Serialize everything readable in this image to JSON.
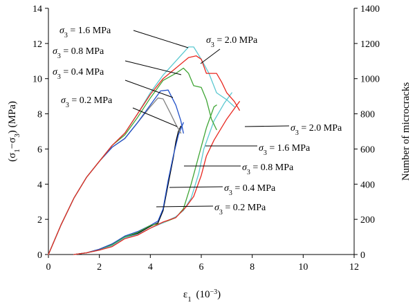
{
  "chart_data": {
    "type": "line",
    "title": "",
    "x_axis": {
      "label": "ε₁ (10⁻³)",
      "range": [
        0,
        12
      ],
      "ticks": [
        0,
        2,
        4,
        6,
        8,
        10,
        12
      ]
    },
    "y_axis_left": {
      "label": "(σ₁−σ₃) (MPa)",
      "range": [
        0,
        14
      ],
      "ticks": [
        0,
        2,
        4,
        6,
        8,
        10,
        12,
        14
      ]
    },
    "y_axis_right": {
      "label": "Number of microcracks",
      "range": [
        0,
        1400
      ],
      "ticks": [
        0,
        200,
        400,
        600,
        800,
        1000,
        1200,
        1400
      ]
    },
    "grid": false,
    "legend": "none (curves labeled by leader-line annotations)",
    "stress_curves": [
      {
        "name": "σ₃ = 0.2 MPa",
        "color": "#808080",
        "axis": "left",
        "points": [
          [
            0,
            0
          ],
          [
            0.5,
            1.7
          ],
          [
            1,
            3.2
          ],
          [
            1.5,
            4.4
          ],
          [
            2,
            5.3
          ],
          [
            2.5,
            6.1
          ],
          [
            3,
            6.6
          ],
          [
            3.5,
            7.5
          ],
          [
            4,
            8.4
          ],
          [
            4.3,
            8.9
          ],
          [
            4.5,
            8.85
          ],
          [
            4.8,
            8.0
          ],
          [
            5,
            7.4
          ],
          [
            5.2,
            6.9
          ]
        ]
      },
      {
        "name": "σ₃ = 0.4 MPa",
        "color": "#1f4fc8",
        "axis": "left",
        "points": [
          [
            0,
            0
          ],
          [
            0.5,
            1.7
          ],
          [
            1,
            3.2
          ],
          [
            1.5,
            4.4
          ],
          [
            2,
            5.3
          ],
          [
            2.5,
            6.1
          ],
          [
            3,
            6.6
          ],
          [
            3.5,
            7.5
          ],
          [
            4,
            8.5
          ],
          [
            4.4,
            9.3
          ],
          [
            4.7,
            9.35
          ],
          [
            5,
            8.5
          ],
          [
            5.2,
            7.6
          ],
          [
            5.3,
            6.9
          ]
        ]
      },
      {
        "name": "σ₃ = 0.8 MPa",
        "color": "#3fa535",
        "axis": "left",
        "points": [
          [
            0,
            0
          ],
          [
            0.5,
            1.7
          ],
          [
            1,
            3.2
          ],
          [
            1.5,
            4.4
          ],
          [
            2,
            5.3
          ],
          [
            2.5,
            6.2
          ],
          [
            3,
            6.8
          ],
          [
            3.5,
            7.8
          ],
          [
            4,
            8.9
          ],
          [
            4.5,
            9.9
          ],
          [
            5,
            10.3
          ],
          [
            5.3,
            10.6
          ],
          [
            5.5,
            10.3
          ],
          [
            5.7,
            9.6
          ],
          [
            6,
            9.5
          ],
          [
            6.2,
            8.8
          ],
          [
            6.4,
            7.7
          ],
          [
            6.6,
            7.1
          ]
        ]
      },
      {
        "name": "σ₃ = 1.6 MPa",
        "color": "#5bc8d0",
        "axis": "left",
        "points": [
          [
            0,
            0
          ],
          [
            0.5,
            1.7
          ],
          [
            1,
            3.2
          ],
          [
            1.5,
            4.4
          ],
          [
            2,
            5.3
          ],
          [
            2.5,
            6.2
          ],
          [
            3,
            6.9
          ],
          [
            3.5,
            8.0
          ],
          [
            4,
            9.2
          ],
          [
            4.5,
            10.2
          ],
          [
            5,
            11.0
          ],
          [
            5.5,
            11.8
          ],
          [
            5.7,
            11.8
          ],
          [
            6,
            11.1
          ],
          [
            6.3,
            10.3
          ],
          [
            6.6,
            9.2
          ],
          [
            7,
            8.8
          ],
          [
            7.3,
            8.4
          ]
        ]
      },
      {
        "name": "σ₃ = 2.0 MPa",
        "color": "#e8271f",
        "axis": "left",
        "points": [
          [
            0,
            0
          ],
          [
            0.5,
            1.7
          ],
          [
            1,
            3.2
          ],
          [
            1.5,
            4.4
          ],
          [
            2,
            5.3
          ],
          [
            2.5,
            6.2
          ],
          [
            3,
            6.9
          ],
          [
            3.5,
            8.0
          ],
          [
            4,
            9.1
          ],
          [
            4.5,
            10.0
          ],
          [
            5,
            10.6
          ],
          [
            5.5,
            11.2
          ],
          [
            5.8,
            11.3
          ],
          [
            6,
            11.1
          ],
          [
            6.2,
            10.3
          ],
          [
            6.6,
            10.3
          ],
          [
            6.8,
            9.8
          ],
          [
            7,
            9.2
          ],
          [
            7.3,
            8.7
          ],
          [
            7.5,
            8.2
          ]
        ]
      }
    ],
    "crack_curves": [
      {
        "name": "σ₃ = 0.2 MPa",
        "color": "#000000",
        "axis": "right",
        "points": [
          [
            1,
            0
          ],
          [
            1.5,
            10
          ],
          [
            2,
            30
          ],
          [
            2.5,
            60
          ],
          [
            3,
            100
          ],
          [
            3.5,
            120
          ],
          [
            4,
            160
          ],
          [
            4.3,
            180
          ],
          [
            4.5,
            250
          ],
          [
            4.7,
            400
          ],
          [
            4.9,
            550
          ],
          [
            5.0,
            640
          ],
          [
            5.1,
            700
          ],
          [
            5.2,
            730
          ]
        ]
      },
      {
        "name": "σ₃ = 0.4 MPa",
        "color": "#1f4fc8",
        "axis": "right",
        "points": [
          [
            1,
            0
          ],
          [
            1.5,
            10
          ],
          [
            2,
            30
          ],
          [
            2.5,
            60
          ],
          [
            3,
            105
          ],
          [
            3.5,
            130
          ],
          [
            4,
            165
          ],
          [
            4.3,
            190
          ],
          [
            4.5,
            260
          ],
          [
            4.7,
            420
          ],
          [
            4.9,
            560
          ],
          [
            5.1,
            680
          ],
          [
            5.3,
            750
          ]
        ]
      },
      {
        "name": "σ₃ = 0.8 MPa",
        "color": "#3fa535",
        "axis": "right",
        "points": [
          [
            1,
            0
          ],
          [
            1.5,
            10
          ],
          [
            2,
            25
          ],
          [
            2.5,
            55
          ],
          [
            3,
            100
          ],
          [
            3.5,
            125
          ],
          [
            4,
            165
          ],
          [
            4.5,
            180
          ],
          [
            5,
            210
          ],
          [
            5.3,
            260
          ],
          [
            5.6,
            400
          ],
          [
            5.9,
            560
          ],
          [
            6.2,
            720
          ],
          [
            6.5,
            840
          ],
          [
            6.6,
            850
          ]
        ]
      },
      {
        "name": "σ₃ = 1.6 MPa",
        "color": "#5bc8d0",
        "axis": "right",
        "points": [
          [
            1,
            0
          ],
          [
            1.5,
            10
          ],
          [
            2,
            25
          ],
          [
            2.5,
            50
          ],
          [
            3,
            95
          ],
          [
            3.5,
            115
          ],
          [
            4,
            150
          ],
          [
            4.5,
            180
          ],
          [
            5,
            215
          ],
          [
            5.3,
            250
          ],
          [
            5.6,
            320
          ],
          [
            5.9,
            460
          ],
          [
            6.1,
            600
          ],
          [
            6.5,
            760
          ],
          [
            6.9,
            860
          ],
          [
            7.2,
            920
          ]
        ]
      },
      {
        "name": "σ₃ = 2.0 MPa",
        "color": "#e8271f",
        "axis": "right",
        "points": [
          [
            1,
            0
          ],
          [
            1.5,
            10
          ],
          [
            2,
            25
          ],
          [
            2.5,
            45
          ],
          [
            3,
            90
          ],
          [
            3.5,
            110
          ],
          [
            4,
            150
          ],
          [
            4.5,
            185
          ],
          [
            5,
            210
          ],
          [
            5.4,
            270
          ],
          [
            5.7,
            330
          ],
          [
            6.0,
            450
          ],
          [
            6.2,
            560
          ],
          [
            6.5,
            650
          ],
          [
            7.0,
            770
          ],
          [
            7.3,
            830
          ],
          [
            7.5,
            870
          ]
        ]
      }
    ],
    "annotations": [
      {
        "id": "ann-stress-16",
        "prefix": "σ",
        "sub": "3",
        "suffix": " = 1.6 MPa"
      },
      {
        "id": "ann-stress-08",
        "prefix": "σ",
        "sub": "3",
        "suffix": " = 0.8 MPa"
      },
      {
        "id": "ann-stress-04",
        "prefix": "σ",
        "sub": "3",
        "suffix": " = 0.4 MPa"
      },
      {
        "id": "ann-stress-02",
        "prefix": "σ",
        "sub": "3",
        "suffix": " = 0.2 MPa"
      },
      {
        "id": "ann-stress-20",
        "prefix": "σ",
        "sub": "3",
        "suffix": " = 2.0 MPa"
      },
      {
        "id": "ann-crack-20",
        "prefix": "σ",
        "sub": "3",
        "suffix": " = 2.0 MPa"
      },
      {
        "id": "ann-crack-16",
        "prefix": "σ",
        "sub": "3",
        "suffix": " = 1.6 MPa"
      },
      {
        "id": "ann-crack-08",
        "prefix": "σ",
        "sub": "3",
        "suffix": " = 0.8 MPa"
      },
      {
        "id": "ann-crack-04",
        "prefix": "σ",
        "sub": "3",
        "suffix": " = 0.4 MPa"
      },
      {
        "id": "ann-crack-02",
        "prefix": "σ",
        "sub": "3",
        "suffix": " = 0.2 MPa"
      }
    ]
  }
}
